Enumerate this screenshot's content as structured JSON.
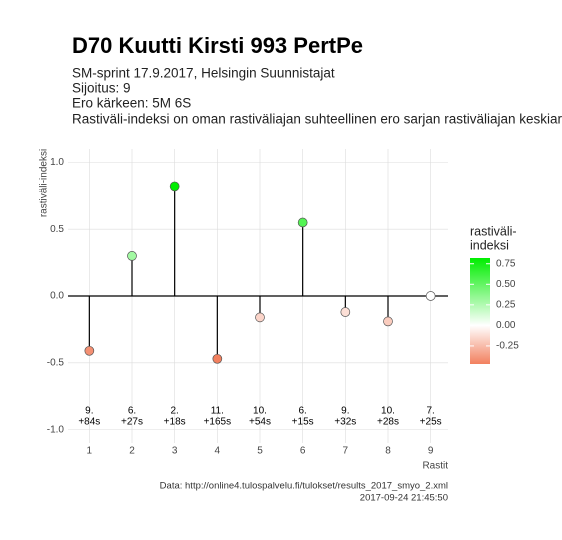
{
  "chart_data": {
    "type": "lollipop",
    "title": "D70 Kuutti Kirsti 993 PertPe",
    "subtitle": [
      "SM-sprint 17.9.2017, Helsingin Suunnistajat",
      "Sijoitus: 9",
      "Ero kärkeen: 5M 6S",
      "Rastiväli-indeksi on oman rastiväliajan suhteellinen ero sarjan rastiväliajan keskiarvoo"
    ],
    "y_label": "rastiväli-indeksi",
    "x_label": "Rastit",
    "x": [
      1,
      2,
      3,
      4,
      5,
      6,
      7,
      8,
      9
    ],
    "values": [
      -0.41,
      0.3,
      0.82,
      -0.47,
      -0.16,
      0.55,
      -0.12,
      -0.19,
      0.0
    ],
    "ranks": [
      "9.",
      "6.",
      "2.",
      "11.",
      "10.",
      "6.",
      "9.",
      "10.",
      "7."
    ],
    "gaps": [
      "+84s",
      "+27s",
      "+18s",
      "+165s",
      "+54s",
      "+15s",
      "+32s",
      "+28s",
      "+25s"
    ],
    "xlim": [
      0.5,
      9.5
    ],
    "xticks": [
      1,
      2,
      3,
      4,
      5,
      6,
      7,
      8,
      9
    ],
    "ylim": [
      -1.1,
      1.1
    ],
    "yticks": [
      {
        "value": -1,
        "label": "-1.0"
      },
      {
        "value": -0.5,
        "label": "-0.5"
      },
      {
        "value": 0,
        "label": "0.0"
      },
      {
        "value": 0.5,
        "label": "0.5"
      },
      {
        "value": 1,
        "label": "1.0"
      }
    ],
    "grid": true,
    "colors": {
      "low": "#f2805f",
      "mid": "#ffffff",
      "high": "#00ee00"
    },
    "legend_title": [
      "rastiväli-",
      "indeksi"
    ],
    "legend_ticks": [
      {
        "value": -0.25,
        "label": "-0.25"
      },
      {
        "value": 0,
        "label": "0.00"
      },
      {
        "value": 0.25,
        "label": "0.25"
      },
      {
        "value": 0.5,
        "label": "0.50"
      },
      {
        "value": 0.75,
        "label": "0.75"
      }
    ],
    "caption": [
      "Data: http://online4.tulospalvelu.fi/tulokset/results_2017_smyo_2.xml",
      "2017-09-24 21:45:50"
    ]
  }
}
